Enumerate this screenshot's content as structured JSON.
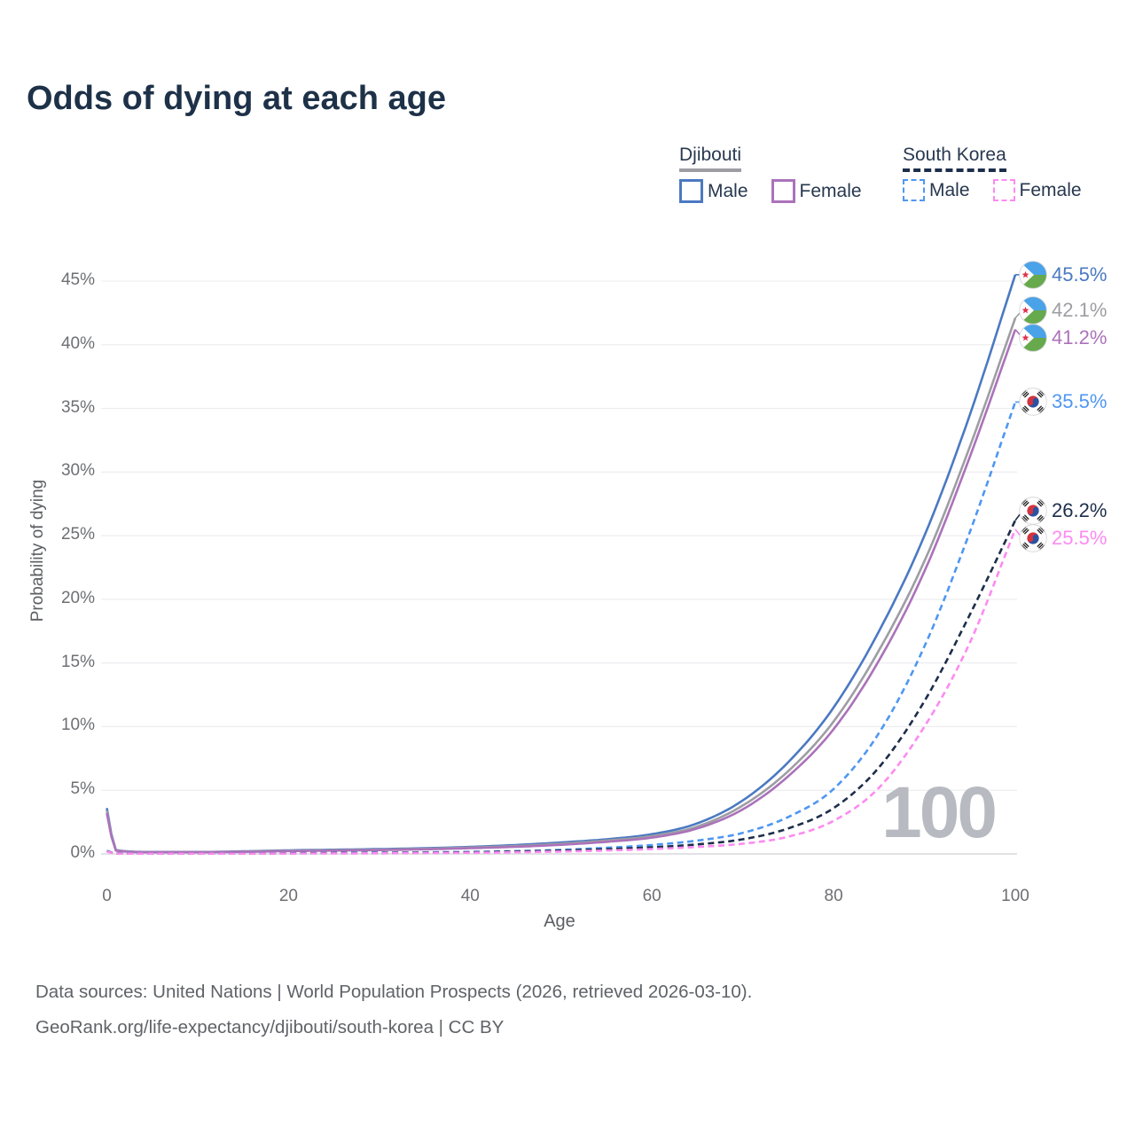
{
  "title": "Odds of dying at each age",
  "legend": {
    "groups": [
      {
        "label": "Djibouti",
        "line_style": "solid",
        "items": [
          {
            "label": "Male"
          },
          {
            "label": "Female"
          }
        ]
      },
      {
        "label": "South Korea",
        "line_style": "dashed",
        "items": [
          {
            "label": "Male"
          },
          {
            "label": "Female"
          }
        ]
      }
    ]
  },
  "colors": {
    "title_text": "#1d3148",
    "axis_text": "#6e6f73",
    "grid": "#ececef",
    "axis_line": "#d8d8dc",
    "watermark": "#b7bac0",
    "footer_text": "#5f6368",
    "djibouti_male": "#4b79c2",
    "djibouti_all": "#9d9da3",
    "djibouti_female": "#ab72ba",
    "south_korea_male": "#4f97f2",
    "south_korea_all": "#1d2e4a",
    "south_korea_female": "#fc8bf0",
    "djibouti_flag_blue": "#4aa2e8",
    "djibouti_flag_green": "#67a94d",
    "djibouti_flag_star": "#e0314b",
    "korea_flag_red": "#d4333f",
    "korea_flag_blue": "#2c52a0"
  },
  "chart_data": {
    "type": "line",
    "title": "Odds of dying at each age",
    "xlabel": "Age",
    "ylabel": "Probability of dying",
    "xlim": [
      0,
      100
    ],
    "ylim": [
      0,
      45
    ],
    "x_ticks": [
      0,
      20,
      40,
      60,
      80,
      100
    ],
    "y_ticks_percent": [
      0,
      5,
      10,
      15,
      20,
      25,
      30,
      35,
      40,
      45
    ],
    "grid": "horizontal",
    "legend_position": "top-right",
    "watermark": "100",
    "ages": [
      0,
      1,
      5,
      10,
      15,
      20,
      25,
      30,
      35,
      40,
      45,
      50,
      55,
      60,
      65,
      70,
      75,
      80,
      85,
      90,
      95,
      100
    ],
    "series": [
      {
        "id": "djibouti-male",
        "name": "Djibouti Male",
        "country": "Djibouti",
        "sex": "Male",
        "flag": "djibouti",
        "dash": false,
        "color": "#4b79c2",
        "end_label": "45.5%",
        "values": [
          3.6,
          0.3,
          0.15,
          0.15,
          0.2,
          0.28,
          0.33,
          0.38,
          0.45,
          0.55,
          0.7,
          0.9,
          1.15,
          1.55,
          2.4,
          4.2,
          7.2,
          11.5,
          17.5,
          25.0,
          34.5,
          45.5
        ]
      },
      {
        "id": "djibouti-all",
        "name": "Djibouti",
        "country": "Djibouti",
        "sex": "Both",
        "flag": "djibouti",
        "dash": false,
        "color": "#9d9da3",
        "end_label": "42.1%",
        "values": [
          3.4,
          0.28,
          0.14,
          0.14,
          0.18,
          0.25,
          0.29,
          0.33,
          0.4,
          0.5,
          0.62,
          0.8,
          1.05,
          1.4,
          2.15,
          3.8,
          6.5,
          10.4,
          16.0,
          23.0,
          32.0,
          42.1
        ]
      },
      {
        "id": "djibouti-female",
        "name": "Djibouti Female",
        "country": "Djibouti",
        "sex": "Female",
        "flag": "djibouti",
        "dash": false,
        "color": "#ab72ba",
        "end_label": "41.2%",
        "values": [
          3.2,
          0.26,
          0.13,
          0.13,
          0.16,
          0.22,
          0.26,
          0.3,
          0.36,
          0.45,
          0.56,
          0.72,
          0.95,
          1.28,
          2.0,
          3.5,
          6.1,
          9.8,
          15.2,
          22.2,
          31.2,
          41.2
        ]
      },
      {
        "id": "south-korea-male",
        "name": "South Korea Male",
        "country": "South Korea",
        "sex": "Male",
        "flag": "south-korea",
        "dash": true,
        "color": "#4f97f2",
        "end_label": "35.5%",
        "values": [
          0.25,
          0.03,
          0.02,
          0.02,
          0.04,
          0.06,
          0.08,
          0.1,
          0.12,
          0.16,
          0.22,
          0.32,
          0.48,
          0.7,
          1.05,
          1.65,
          2.9,
          5.1,
          9.5,
          16.3,
          25.3,
          35.5
        ]
      },
      {
        "id": "south-korea-all",
        "name": "South Korea",
        "country": "South Korea",
        "sex": "Both",
        "flag": "south-korea",
        "dash": true,
        "color": "#1d2e4a",
        "end_label": "26.2%",
        "values": [
          0.22,
          0.03,
          0.02,
          0.02,
          0.03,
          0.05,
          0.06,
          0.08,
          0.1,
          0.13,
          0.18,
          0.26,
          0.37,
          0.52,
          0.75,
          1.15,
          2.0,
          3.6,
          6.8,
          12.0,
          18.8,
          26.2
        ]
      },
      {
        "id": "south-korea-female",
        "name": "South Korea Female",
        "country": "South Korea",
        "sex": "Female",
        "flag": "south-korea",
        "dash": true,
        "color": "#fc8bf0",
        "end_label": "25.5%",
        "values": [
          0.2,
          0.02,
          0.01,
          0.01,
          0.02,
          0.03,
          0.04,
          0.05,
          0.07,
          0.09,
          0.13,
          0.19,
          0.27,
          0.38,
          0.55,
          0.8,
          1.35,
          2.6,
          5.2,
          10.0,
          16.6,
          25.5
        ]
      }
    ]
  },
  "footer": {
    "line1": "Data sources: United Nations | World Population Prospects (2026, retrieved 2026-03-10).",
    "line2": "GeoRank.org/life-expectancy/djibouti/south-korea | CC BY"
  }
}
